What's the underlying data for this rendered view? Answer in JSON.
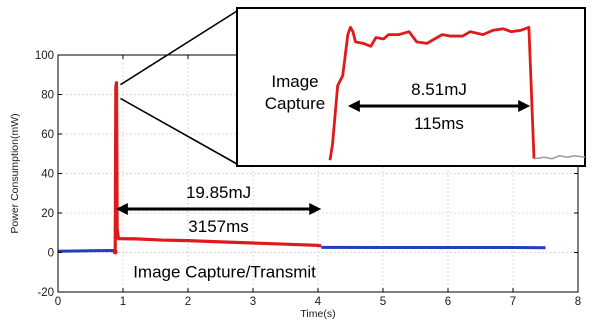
{
  "chart_data": {
    "type": "line",
    "title": "",
    "xlabel": "Time(s)",
    "ylabel": "Power Consumption(mW)",
    "xlim": [
      0,
      8
    ],
    "ylim": [
      -20,
      100
    ],
    "xticks": [
      "0",
      "1",
      "2",
      "3",
      "4",
      "5",
      "6",
      "7",
      "8"
    ],
    "yticks": [
      "-20",
      "0",
      "20",
      "40",
      "60",
      "80",
      "100"
    ],
    "grid": true,
    "colors": {
      "idle": "#1f3fbf",
      "active": "#e01a1a",
      "inset_tail": "#9a9a9a"
    },
    "series": [
      {
        "points": [
          [
            0.0,
            0.6
          ],
          [
            0.5,
            0.9
          ],
          [
            0.87,
            1.0
          ],
          [
            0.88,
            0.3
          ]
        ]
      },
      {
        "points": [
          [
            0.88,
            0.3
          ],
          [
            0.89,
            84.0
          ],
          [
            0.9,
            86.0
          ],
          [
            0.905,
            50.0
          ],
          [
            0.91,
            12.0
          ],
          [
            0.93,
            7.0
          ],
          [
            1.2,
            6.9
          ],
          [
            1.6,
            6.3
          ],
          [
            2.0,
            6.0
          ],
          [
            2.5,
            5.4
          ],
          [
            3.0,
            4.8
          ],
          [
            3.5,
            4.2
          ],
          [
            4.0,
            3.6
          ],
          [
            4.05,
            3.3
          ]
        ]
      },
      {
        "points": [
          [
            4.05,
            2.6
          ],
          [
            5.0,
            2.5
          ],
          [
            6.0,
            2.5
          ],
          [
            7.0,
            2.5
          ],
          [
            7.5,
            2.4
          ]
        ]
      }
    ],
    "annotations": {
      "main_energy": "19.85mJ",
      "main_duration": "3157ms",
      "main_label": "Image Capture/Transmit",
      "main_arrow": [
        0.89,
        4.05
      ],
      "main_arrow_y": 22
    },
    "inset": {
      "label_line1": "Image",
      "label_line2": "Capture",
      "energy": "8.51mJ",
      "duration": "115ms",
      "profile": [
        [
          0.0,
          4
        ],
        [
          0.01,
          15
        ],
        [
          0.03,
          55
        ],
        [
          0.05,
          62
        ],
        [
          0.07,
          90
        ],
        [
          0.08,
          95
        ],
        [
          0.09,
          92
        ],
        [
          0.1,
          85
        ],
        [
          0.13,
          84
        ],
        [
          0.16,
          82
        ],
        [
          0.18,
          88
        ],
        [
          0.21,
          87
        ],
        [
          0.23,
          90
        ],
        [
          0.27,
          90
        ],
        [
          0.31,
          92
        ],
        [
          0.34,
          85
        ],
        [
          0.38,
          84
        ],
        [
          0.41,
          87
        ],
        [
          0.44,
          90
        ],
        [
          0.47,
          89
        ],
        [
          0.52,
          89
        ],
        [
          0.55,
          92
        ],
        [
          0.6,
          90
        ],
        [
          0.64,
          93
        ],
        [
          0.68,
          94
        ],
        [
          0.71,
          92
        ],
        [
          0.75,
          93
        ],
        [
          0.78,
          95
        ],
        [
          0.8,
          5
        ]
      ],
      "tail": [
        [
          0.8,
          5
        ],
        [
          0.84,
          6
        ],
        [
          0.87,
          5
        ],
        [
          0.9,
          7
        ],
        [
          0.93,
          6
        ],
        [
          0.96,
          7
        ],
        [
          1.0,
          6
        ]
      ]
    }
  }
}
